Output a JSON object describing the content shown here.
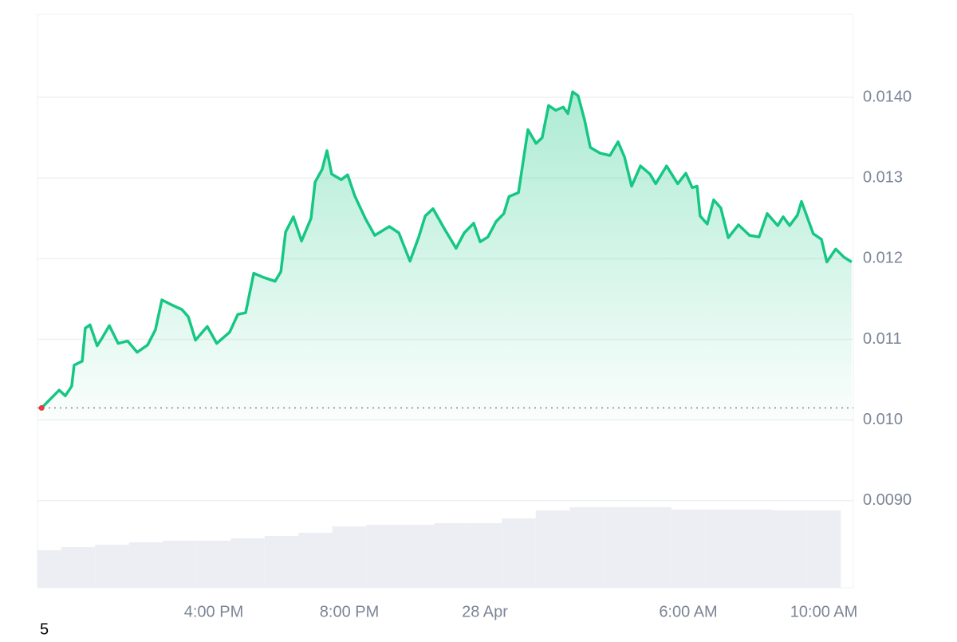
{
  "chart_data": {
    "type": "line",
    "x": [
      10.92,
      11.11,
      11.44,
      11.62,
      11.81,
      11.88,
      12.12,
      12.21,
      12.35,
      12.56,
      12.71,
      12.92,
      13.18,
      13.46,
      13.74,
      14.05,
      14.28,
      14.47,
      14.75,
      15.06,
      15.25,
      15.46,
      15.81,
      16.09,
      16.47,
      16.71,
      16.94,
      17.18,
      17.46,
      17.81,
      17.98,
      18.12,
      18.35,
      18.59,
      18.87,
      18.99,
      19.2,
      19.34,
      19.48,
      19.76,
      19.95,
      20.16,
      20.47,
      20.75,
      21.18,
      21.46,
      21.79,
      22.05,
      22.24,
      22.47,
      22.82,
      23.15,
      23.39,
      23.67,
      23.86,
      24.09,
      24.33,
      24.56,
      24.71,
      24.99,
      25.27,
      25.51,
      25.69,
      25.88,
      26.09,
      26.31,
      26.45,
      26.59,
      26.75,
      26.94,
      27.11,
      27.39,
      27.69,
      27.93,
      28.12,
      28.33,
      28.59,
      28.87,
      29.04,
      29.36,
      29.69,
      29.93,
      30.12,
      30.26,
      30.35,
      30.56,
      30.75,
      30.96,
      31.18,
      31.48,
      31.81,
      32.09,
      32.33,
      32.64,
      32.8,
      32.99,
      33.22,
      33.34,
      33.69,
      33.93,
      34.09,
      34.35,
      34.59,
      34.82
    ],
    "series": [
      {
        "color": "#16c784",
        "values": [
          0.01015,
          0.01023,
          0.01037,
          0.0103,
          0.01042,
          0.01068,
          0.01073,
          0.01114,
          0.01118,
          0.01092,
          0.01102,
          0.01117,
          0.01095,
          0.01098,
          0.01084,
          0.01093,
          0.01112,
          0.01149,
          0.01143,
          0.01137,
          0.01128,
          0.01099,
          0.01116,
          0.01095,
          0.01109,
          0.01131,
          0.01133,
          0.01182,
          0.01177,
          0.01172,
          0.01184,
          0.01233,
          0.01252,
          0.01222,
          0.0125,
          0.01295,
          0.01311,
          0.01334,
          0.01305,
          0.01298,
          0.01304,
          0.01278,
          0.0125,
          0.01229,
          0.0124,
          0.01232,
          0.01197,
          0.01227,
          0.01253,
          0.01262,
          0.01236,
          0.01213,
          0.01232,
          0.01244,
          0.01221,
          0.01227,
          0.01246,
          0.01256,
          0.01277,
          0.01282,
          0.0136,
          0.01343,
          0.0135,
          0.0139,
          0.01384,
          0.01388,
          0.0138,
          0.01407,
          0.01402,
          0.01372,
          0.01338,
          0.01331,
          0.01328,
          0.01345,
          0.01326,
          0.0129,
          0.01315,
          0.01305,
          0.01293,
          0.01315,
          0.01293,
          0.01306,
          0.01288,
          0.0129,
          0.01253,
          0.01243,
          0.01273,
          0.01263,
          0.01226,
          0.01242,
          0.01229,
          0.01227,
          0.01256,
          0.01241,
          0.01252,
          0.01241,
          0.01254,
          0.01271,
          0.01231,
          0.01224,
          0.01196,
          0.01212,
          0.01202,
          0.01196
        ]
      }
    ],
    "volume": {
      "color": "#eceef3",
      "x": [
        11,
        12,
        13,
        14,
        15,
        16,
        17,
        18,
        19,
        20,
        21,
        22,
        23,
        24,
        25,
        26,
        27,
        28,
        29,
        30,
        31,
        32,
        33,
        34
      ],
      "values": [
        47,
        51,
        54,
        57,
        59,
        59,
        62,
        65,
        69,
        77,
        79,
        79,
        81,
        81,
        87,
        97,
        101,
        101,
        101,
        98,
        98,
        98,
        97,
        97
      ]
    },
    "xlim": [
      10.8,
      34.87
    ],
    "xticks": [
      {
        "value": 16,
        "label": "4:00 PM"
      },
      {
        "value": 20,
        "label": "8:00 PM"
      },
      {
        "value": 24,
        "label": "28 Apr"
      },
      {
        "value": 30,
        "label": "6:00 AM"
      },
      {
        "value": 34,
        "label": "10:00 AM"
      }
    ],
    "ylim": [
      0.00792,
      0.01503
    ],
    "yticks": [
      {
        "value": 0.009,
        "label": "0.0090"
      },
      {
        "value": 0.01,
        "label": "0.010"
      },
      0.011,
      0.012,
      0.013,
      {
        "value": 0.014,
        "label": "0.0140"
      }
    ],
    "grid": true,
    "footnote": "5"
  }
}
